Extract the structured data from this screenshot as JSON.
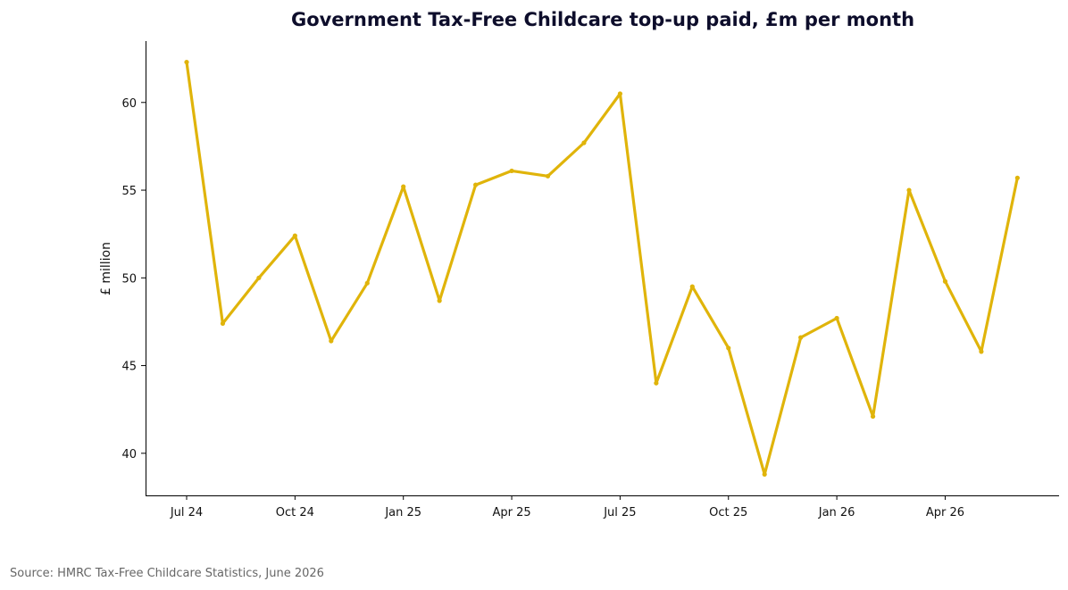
{
  "chart_data": {
    "type": "line",
    "title": "Government Tax-Free Childcare top-up paid, £m per month",
    "xlabel": "",
    "ylabel": "£ million",
    "series": [
      {
        "values": [
          62.3,
          47.4,
          50.0,
          52.4,
          46.4,
          49.7,
          55.2,
          48.7,
          55.3,
          56.1,
          55.8,
          57.7,
          60.5,
          44.0,
          49.5,
          46.0,
          38.8,
          46.6,
          47.7,
          42.1,
          55.0,
          49.8,
          45.8,
          55.7
        ],
        "color": "#e0b40a"
      }
    ],
    "x_months": [
      "Jul 24",
      "Aug 24",
      "Sep 24",
      "Oct 24",
      "Nov 24",
      "Dec 24",
      "Jan 25",
      "Feb 25",
      "Mar 25",
      "Apr 25",
      "May 25",
      "Jun 25",
      "Jul 25",
      "Aug 25",
      "Sep 25",
      "Oct 25",
      "Nov 25",
      "Dec 25",
      "Jan 26",
      "Feb 26",
      "Mar 26",
      "Apr 26",
      "May 26",
      "Jun 26"
    ],
    "x_ticks": [
      "Jul 24",
      "Oct 24",
      "Jan 25",
      "Apr 25",
      "Jul 25",
      "Oct 25",
      "Jan 26",
      "Apr 26"
    ],
    "y_ticks": [
      40,
      45,
      50,
      55,
      60
    ],
    "ylim": [
      37.6,
      63.5
    ],
    "grid": false,
    "source": "Source: HMRC Tax-Free Childcare Statistics, June 2026"
  }
}
